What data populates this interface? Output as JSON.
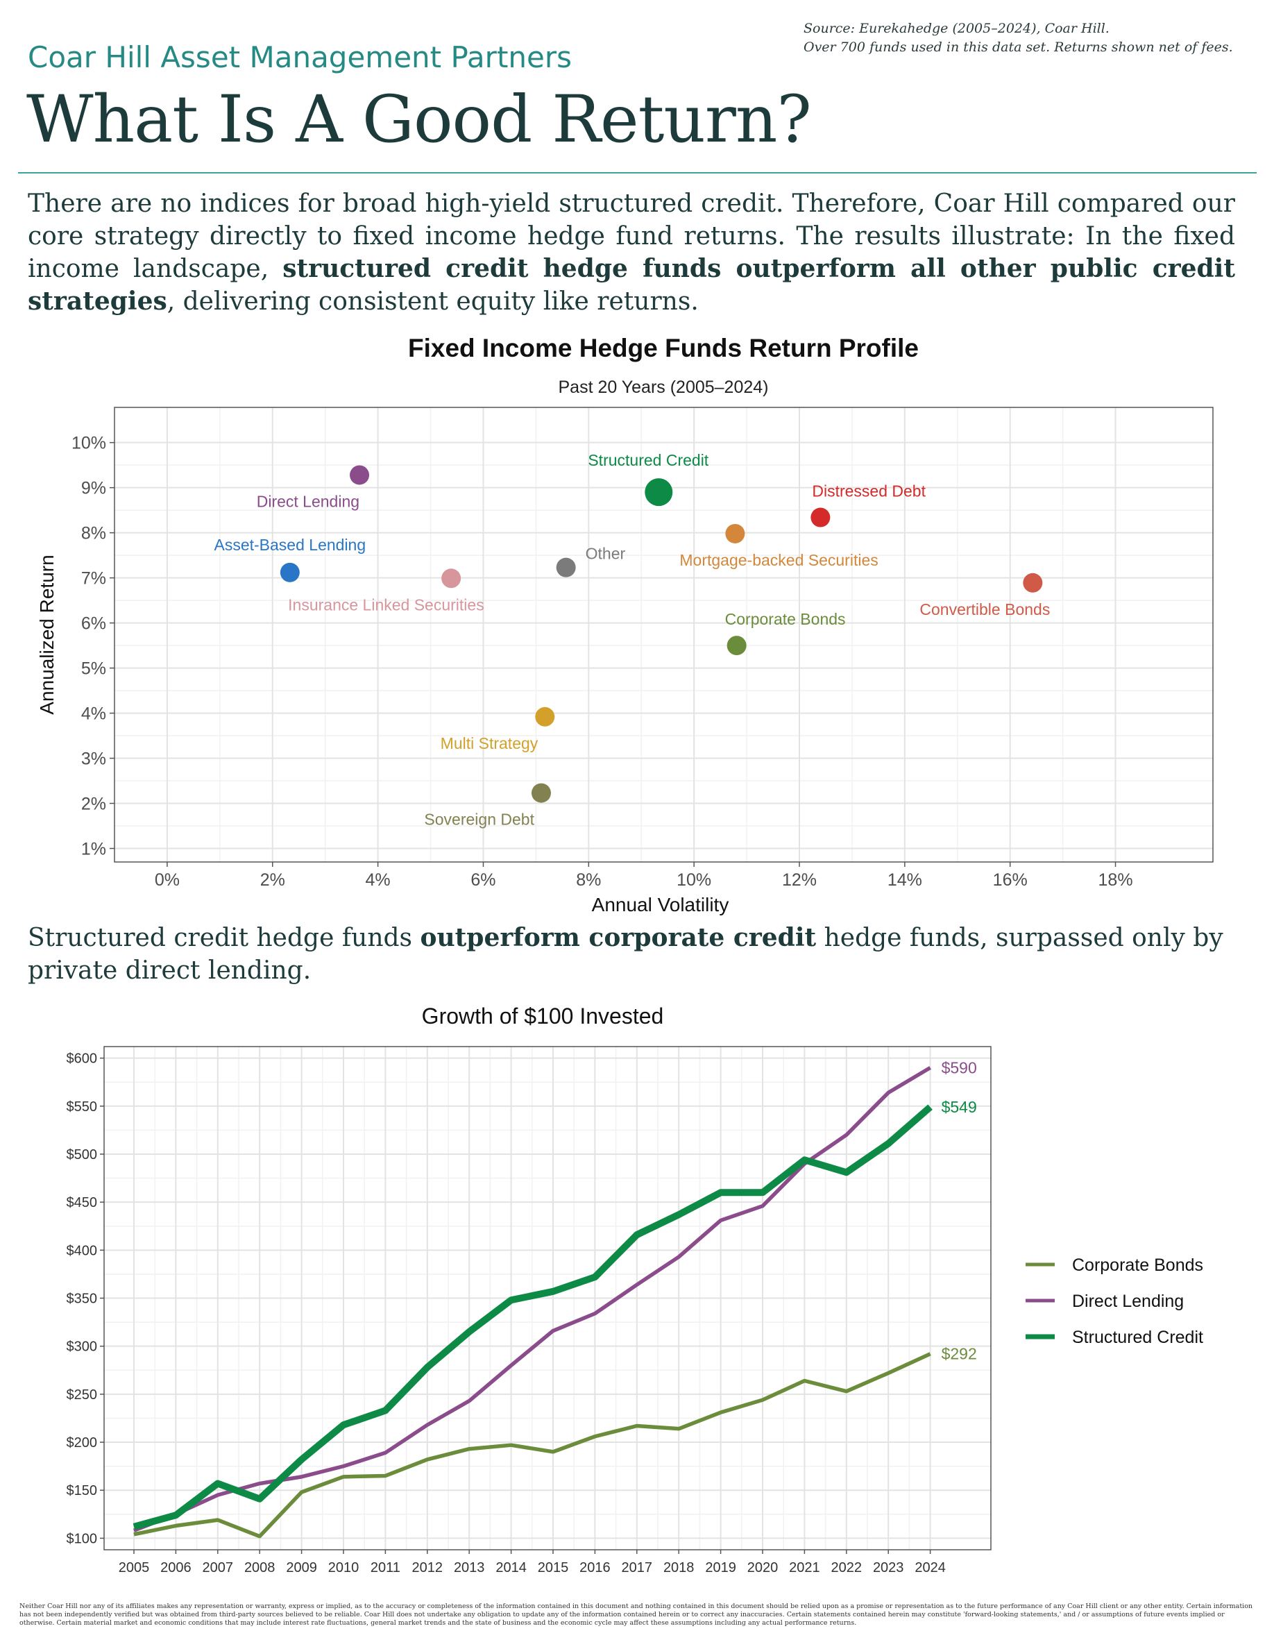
{
  "header": {
    "source_line1": "Source: Eurekahedge (2005–2024), Coar Hill.",
    "source_line2": "Over 700 funds used in this data set. Returns shown net of fees.",
    "firm_name": "Coar Hill Asset Management Partners",
    "title": "What Is A Good Return?"
  },
  "intro": {
    "part1": "There are no indices for broad high-yield structured credit. Therefore, Coar Hill compared our core strategy directly to fixed income hedge fund returns. The results illustrate: In the fixed income landscape, ",
    "bold": "structured credit hedge funds outperform all other public credit strategies",
    "part2": ", delivering consistent equity like returns."
  },
  "caption2": {
    "part1": "Structured credit hedge funds ",
    "bold": "outperform corporate credit",
    "part2": " hedge funds, surpassed only by private direct lending."
  },
  "disclaimer": "Neither Coar Hill nor any of its affiliates makes any representation or warranty, express or implied, as to the accuracy or completeness of the information contained in this document and nothing contained in this document should be relied upon as a promise or representation as to the future performance of any Coar Hill client or any other entity. Certain information has not been independently verified but was obtained from third-party sources believed to be reliable. Coar Hill does not undertake any obligation to update any of the information contained herein or to correct any inaccuracies. Certain statements contained herein may constitute 'forward-looking statements,' and / or assumptions of future events implied or otherwise. Certain material market and economic conditions that may include interest rate fluctuations, general market trends and the state of business and the economic cycle may affect these assumptions including any actual performance returns.",
  "chart_data": [
    {
      "type": "scatter",
      "title": "Fixed Income Hedge Funds Return Profile",
      "subtitle": "Past 20 Years (2005–2024)",
      "xlabel": "Annual Volatility",
      "ylabel": "Annualized Return",
      "xlim": [
        -0.01,
        0.1985
      ],
      "ylim": [
        0.007,
        0.1078
      ],
      "x_ticks": [
        0,
        0.02,
        0.04,
        0.06,
        0.08,
        0.1,
        0.12,
        0.14,
        0.16,
        0.18
      ],
      "x_tick_labels": [
        "0%",
        "2%",
        "4%",
        "6%",
        "8%",
        "10%",
        "12%",
        "14%",
        "16%",
        "18%"
      ],
      "y_ticks": [
        0.01,
        0.02,
        0.03,
        0.04,
        0.05,
        0.06,
        0.07,
        0.08,
        0.09,
        0.1
      ],
      "y_tick_labels": [
        "1%",
        "2%",
        "3%",
        "4%",
        "5%",
        "6%",
        "7%",
        "8%",
        "9%",
        "10%"
      ],
      "grid": true,
      "points": [
        {
          "label": "Direct Lending",
          "x": 0.0365,
          "y": 0.0928,
          "color": "#8b4c8c",
          "label_pos": "below-left"
        },
        {
          "label": "Structured Credit",
          "x": 0.0933,
          "y": 0.089,
          "color": "#0d8a46",
          "size": "large",
          "label_pos": "above-left"
        },
        {
          "label": "Distressed Debt",
          "x": 0.124,
          "y": 0.0834,
          "color": "#d42a2a",
          "label_pos": "above-right"
        },
        {
          "label": "Mortgage-backed Securities",
          "x": 0.1078,
          "y": 0.0798,
          "color": "#d4873a",
          "label_pos": "below-right"
        },
        {
          "label": "Asset-Based Lending",
          "x": 0.0233,
          "y": 0.0712,
          "color": "#2a76c6",
          "label_pos": "above-left"
        },
        {
          "label": "Other",
          "x": 0.0757,
          "y": 0.0723,
          "color": "#7b7b7b",
          "label_pos": "above-right"
        },
        {
          "label": "Insurance Linked Securities",
          "x": 0.0539,
          "y": 0.0699,
          "color": "#d6969c",
          "label_pos": "below-right"
        },
        {
          "label": "Convertible Bonds",
          "x": 0.1643,
          "y": 0.0689,
          "color": "#cf5a48",
          "label_pos": "below-left"
        },
        {
          "label": "Corporate Bonds",
          "x": 0.1081,
          "y": 0.055,
          "color": "#6b8d3b",
          "label_pos": "above-right"
        },
        {
          "label": "Multi Strategy",
          "x": 0.0717,
          "y": 0.0392,
          "color": "#d3a12b",
          "label_pos": "below-left"
        },
        {
          "label": "Sovereign Debt",
          "x": 0.071,
          "y": 0.0223,
          "color": "#828250",
          "label_pos": "below-left"
        }
      ]
    },
    {
      "type": "line",
      "title": "Growth of $100 Invested",
      "x": [
        "2005",
        "2006",
        "2007",
        "2008",
        "2009",
        "2010",
        "2011",
        "2012",
        "2013",
        "2014",
        "2015",
        "2016",
        "2017",
        "2018",
        "2019",
        "2020",
        "2021",
        "2022",
        "2023",
        "2024"
      ],
      "ylim": [
        88,
        612
      ],
      "y_ticks": [
        100,
        150,
        200,
        250,
        300,
        350,
        400,
        450,
        500,
        550,
        600
      ],
      "y_tick_labels": [
        "$100",
        "$150",
        "$200",
        "$250",
        "$300",
        "$350",
        "$400",
        "$450",
        "$500",
        "$550",
        "$600"
      ],
      "grid": true,
      "legend_position": "right",
      "series": [
        {
          "name": "Corporate Bonds",
          "color": "#6b8d3b",
          "end_label": "$292",
          "values": [
            104,
            113,
            119,
            102,
            148,
            164,
            165,
            182,
            193,
            197,
            190,
            206,
            217,
            214,
            231,
            244,
            264,
            253,
            272,
            292
          ]
        },
        {
          "name": "Direct Lending",
          "color": "#8b4c8c",
          "end_label": "$590",
          "values": [
            108,
            125,
            145,
            157,
            164,
            175,
            189,
            218,
            243,
            280,
            316,
            334,
            364,
            393,
            431,
            446,
            490,
            520,
            564,
            590
          ]
        },
        {
          "name": "Structured Credit",
          "color": "#0d8a46",
          "end_label": "$549",
          "values": [
            112,
            124,
            157,
            141,
            182,
            218,
            233,
            278,
            315,
            348,
            357,
            372,
            416,
            437,
            460,
            460,
            494,
            481,
            511,
            549
          ]
        }
      ]
    }
  ]
}
